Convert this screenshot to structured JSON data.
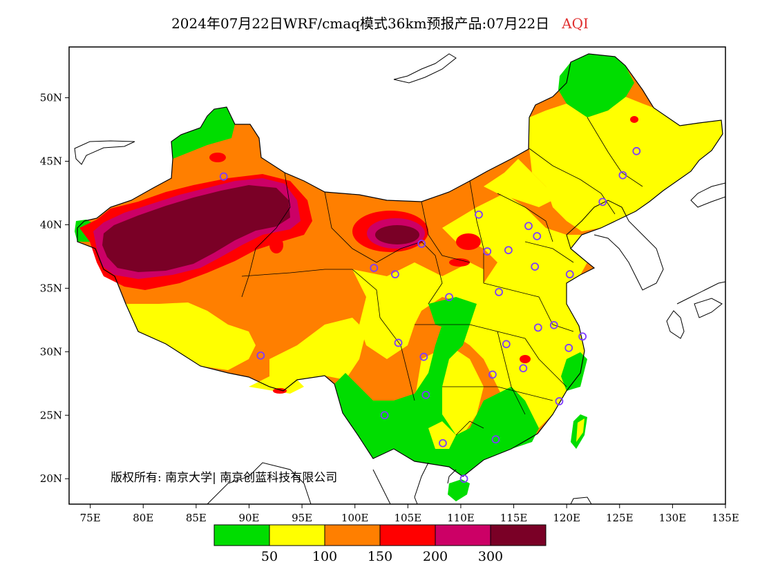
{
  "title": "2024年07月22日WRF/cmaq模式36km预报产品:07月22日",
  "title_variable": "AQI",
  "copyright": "版权所有: 南京大学| 南京创蓝科技有限公司",
  "colors": {
    "good": "#00dd00",
    "moderate": "#ffff00",
    "unhealthy_sensitive": "#ff7f00",
    "unhealthy": "#ff0000",
    "very_unhealthy": "#cc0066",
    "hazardous": "#7a0026",
    "marker": "#7d3cff",
    "title_accent": "#e03030"
  },
  "chart_data": {
    "type": "map",
    "projection": "lat-lon",
    "xlim": [
      73,
      135
    ],
    "ylim": [
      18,
      54
    ],
    "x_ticks": [
      "75E",
      "80E",
      "85E",
      "90E",
      "95E",
      "100E",
      "105E",
      "110E",
      "115E",
      "120E",
      "125E",
      "130E",
      "135E"
    ],
    "x_tick_values": [
      75,
      80,
      85,
      90,
      95,
      100,
      105,
      110,
      115,
      120,
      125,
      130,
      135
    ],
    "y_ticks": [
      "20N",
      "25N",
      "30N",
      "35N",
      "40N",
      "45N",
      "50N"
    ],
    "y_tick_values": [
      20,
      25,
      30,
      35,
      40,
      45,
      50
    ],
    "colorbar": {
      "thresholds": [
        "50",
        "100",
        "150",
        "200",
        "300"
      ],
      "levels": [
        "good",
        "moderate",
        "unhealthy_sensitive",
        "unhealthy",
        "very_unhealthy",
        "hazardous"
      ]
    },
    "stations": [
      [
        87.6,
        43.8
      ],
      [
        126.6,
        45.8
      ],
      [
        125.3,
        43.9
      ],
      [
        123.4,
        41.8
      ],
      [
        111.7,
        40.8
      ],
      [
        116.4,
        39.9
      ],
      [
        117.2,
        39.1
      ],
      [
        106.3,
        38.5
      ],
      [
        112.5,
        37.9
      ],
      [
        114.5,
        38.0
      ],
      [
        117.0,
        36.7
      ],
      [
        101.8,
        36.6
      ],
      [
        103.8,
        36.1
      ],
      [
        108.9,
        34.3
      ],
      [
        113.6,
        34.7
      ],
      [
        120.3,
        36.1
      ],
      [
        104.1,
        30.7
      ],
      [
        106.5,
        29.6
      ],
      [
        114.3,
        30.6
      ],
      [
        117.3,
        31.9
      ],
      [
        118.8,
        32.1
      ],
      [
        120.2,
        30.3
      ],
      [
        121.5,
        31.2
      ],
      [
        91.1,
        29.7
      ],
      [
        106.7,
        26.6
      ],
      [
        113.0,
        28.2
      ],
      [
        115.9,
        28.7
      ],
      [
        102.8,
        25.0
      ],
      [
        108.3,
        22.8
      ],
      [
        113.3,
        23.1
      ],
      [
        119.3,
        26.1
      ],
      [
        110.3,
        20.0
      ]
    ]
  }
}
